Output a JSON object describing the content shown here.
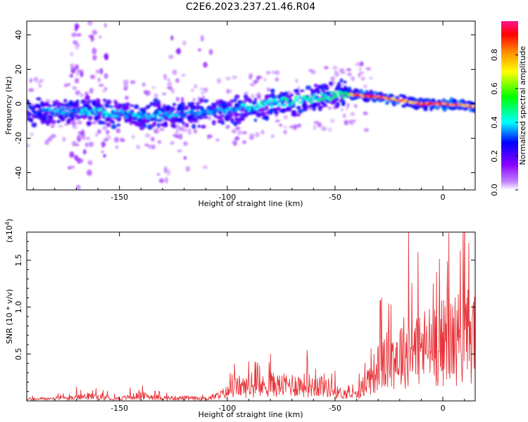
{
  "title": "C2E6.2023.237.21.46.R04",
  "chart_data": [
    {
      "type": "heatmap",
      "title": "C2E6.2023.237.21.46.R04",
      "xlabel": "Height of straight line (km)",
      "ylabel": "Frequency (Hz)",
      "xlim": [
        -193,
        15
      ],
      "ylim": [
        -50,
        48
      ],
      "xticks": [
        -150,
        -100,
        -50,
        0
      ],
      "xtick_labels": [
        "-150",
        "-100",
        "-50",
        "0"
      ],
      "yticks": [
        -40,
        -20,
        0,
        20,
        40
      ],
      "ytick_labels": [
        "-40",
        "-20",
        "0",
        "20",
        "40"
      ],
      "colorbar": {
        "label": "Normalized spectral amplitude",
        "range": [
          0,
          1
        ],
        "ticks": [
          0.0,
          0.2,
          0.4,
          0.6,
          0.8
        ],
        "tick_labels": [
          "0.0",
          "0.2",
          "0.4",
          "0.6",
          "0.8"
        ],
        "colormap": [
          "#ffffff",
          "#8800ff",
          "#0000ff",
          "#00ffff",
          "#00ff00",
          "#ffff00",
          "#ff8800",
          "#ff0000",
          "#ff1493"
        ]
      },
      "ridge": {
        "x": [
          -193,
          -180,
          -160,
          -140,
          -120,
          -100,
          -80,
          -60,
          -45,
          -40,
          -30,
          -20,
          -10,
          0,
          10,
          15
        ],
        "frequency": [
          -5,
          -4,
          -5,
          -7,
          -6,
          -4,
          0,
          3,
          6,
          5,
          4,
          2,
          0,
          0,
          -1,
          -2
        ],
        "amplitude": [
          0.3,
          0.35,
          0.4,
          0.38,
          0.35,
          0.35,
          0.42,
          0.45,
          0.5,
          0.9,
          0.85,
          0.8,
          0.85,
          0.9,
          0.85,
          0.8
        ]
      }
    },
    {
      "type": "line",
      "xlabel": "Height of straight line (km)",
      "ylabel": "SNR (10 * v/v)",
      "y_scale_label": "(x10",
      "y_scale_exp": "4",
      "y_scale_close": ")",
      "xlim": [
        -193,
        15
      ],
      "ylim": [
        0,
        18000
      ],
      "xticks": [
        -150,
        -100,
        -50,
        0
      ],
      "xtick_labels": [
        "-150",
        "-100",
        "-50",
        "0"
      ],
      "yticks": [
        5000,
        10000,
        15000
      ],
      "ytick_labels": [
        "0.5",
        "1.0",
        "1.5"
      ],
      "color": "#e8353a",
      "envelope": {
        "x": [
          -193,
          -170,
          -165,
          -150,
          -140,
          -130,
          -120,
          -110,
          -105,
          -100,
          -95,
          -90,
          -85,
          -80,
          -75,
          -70,
          -65,
          -60,
          -55,
          -50,
          -45,
          -40,
          -35,
          -30,
          -25,
          -20,
          -15,
          -10,
          -5,
          0,
          5,
          10,
          15
        ],
        "y": [
          300,
          500,
          800,
          400,
          900,
          500,
          500,
          400,
          800,
          1500,
          2500,
          2200,
          2300,
          2800,
          2600,
          2800,
          2700,
          2600,
          2700,
          1500,
          1200,
          1000,
          3500,
          5500,
          7000,
          8000,
          9000,
          9000,
          9500,
          10000,
          10500,
          11000,
          11500
        ],
        "peaks": [
          [
            -170,
            1500
          ],
          [
            -145,
            1400
          ],
          [
            -90,
            4200
          ],
          [
            -80,
            5000
          ],
          [
            -63,
            5400
          ],
          [
            -50,
            3200
          ],
          [
            -29,
            10700
          ],
          [
            -16,
            18000
          ],
          [
            -3,
            13700
          ],
          [
            8,
            16000
          ],
          [
            12,
            16800
          ]
        ]
      }
    }
  ]
}
